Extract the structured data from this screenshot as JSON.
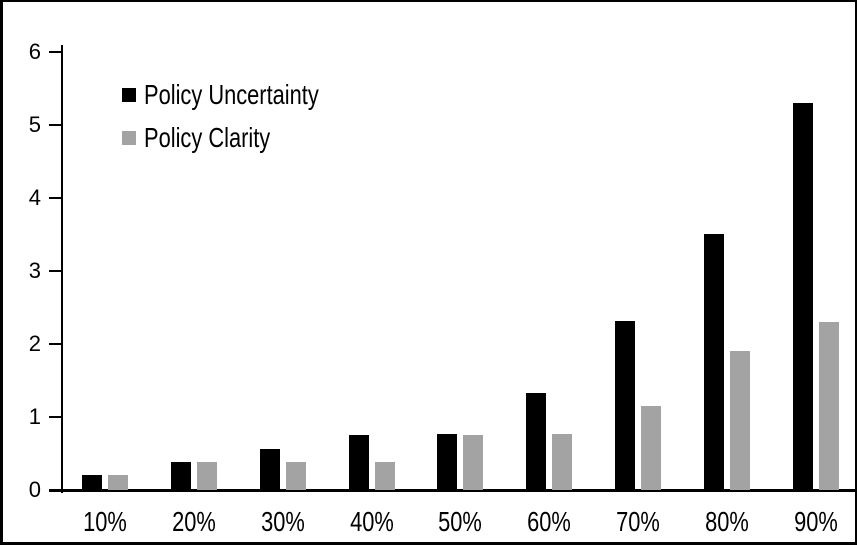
{
  "chart_data": {
    "type": "bar",
    "title": "",
    "categories": [
      "10%",
      "20%",
      "30%",
      "40%",
      "50%",
      "60%",
      "70%",
      "80%",
      "90%"
    ],
    "series": [
      {
        "name": "Policy Uncertainty",
        "color": "#000000",
        "values": [
          0.2,
          0.38,
          0.56,
          0.76,
          0.77,
          1.33,
          2.31,
          3.5,
          5.3
        ]
      },
      {
        "name": "Policy Clarity",
        "color": "#a3a3a3",
        "values": [
          0.2,
          0.38,
          0.38,
          0.38,
          0.76,
          0.77,
          1.15,
          1.9,
          2.3
        ]
      }
    ],
    "xlabel": "",
    "ylabel": "",
    "y_axis": {
      "min": 0,
      "max": 6,
      "tick_step": 1,
      "tick_labels": [
        "0",
        "1",
        "2",
        "3",
        "4",
        "5",
        "6"
      ]
    },
    "grid": false,
    "legend_position": "top-left"
  },
  "colors": {
    "frame_border": "#000000",
    "axis": "#000000",
    "background": "#ffffff",
    "bar_black": "#000000",
    "bar_gray": "#a3a3a3"
  }
}
